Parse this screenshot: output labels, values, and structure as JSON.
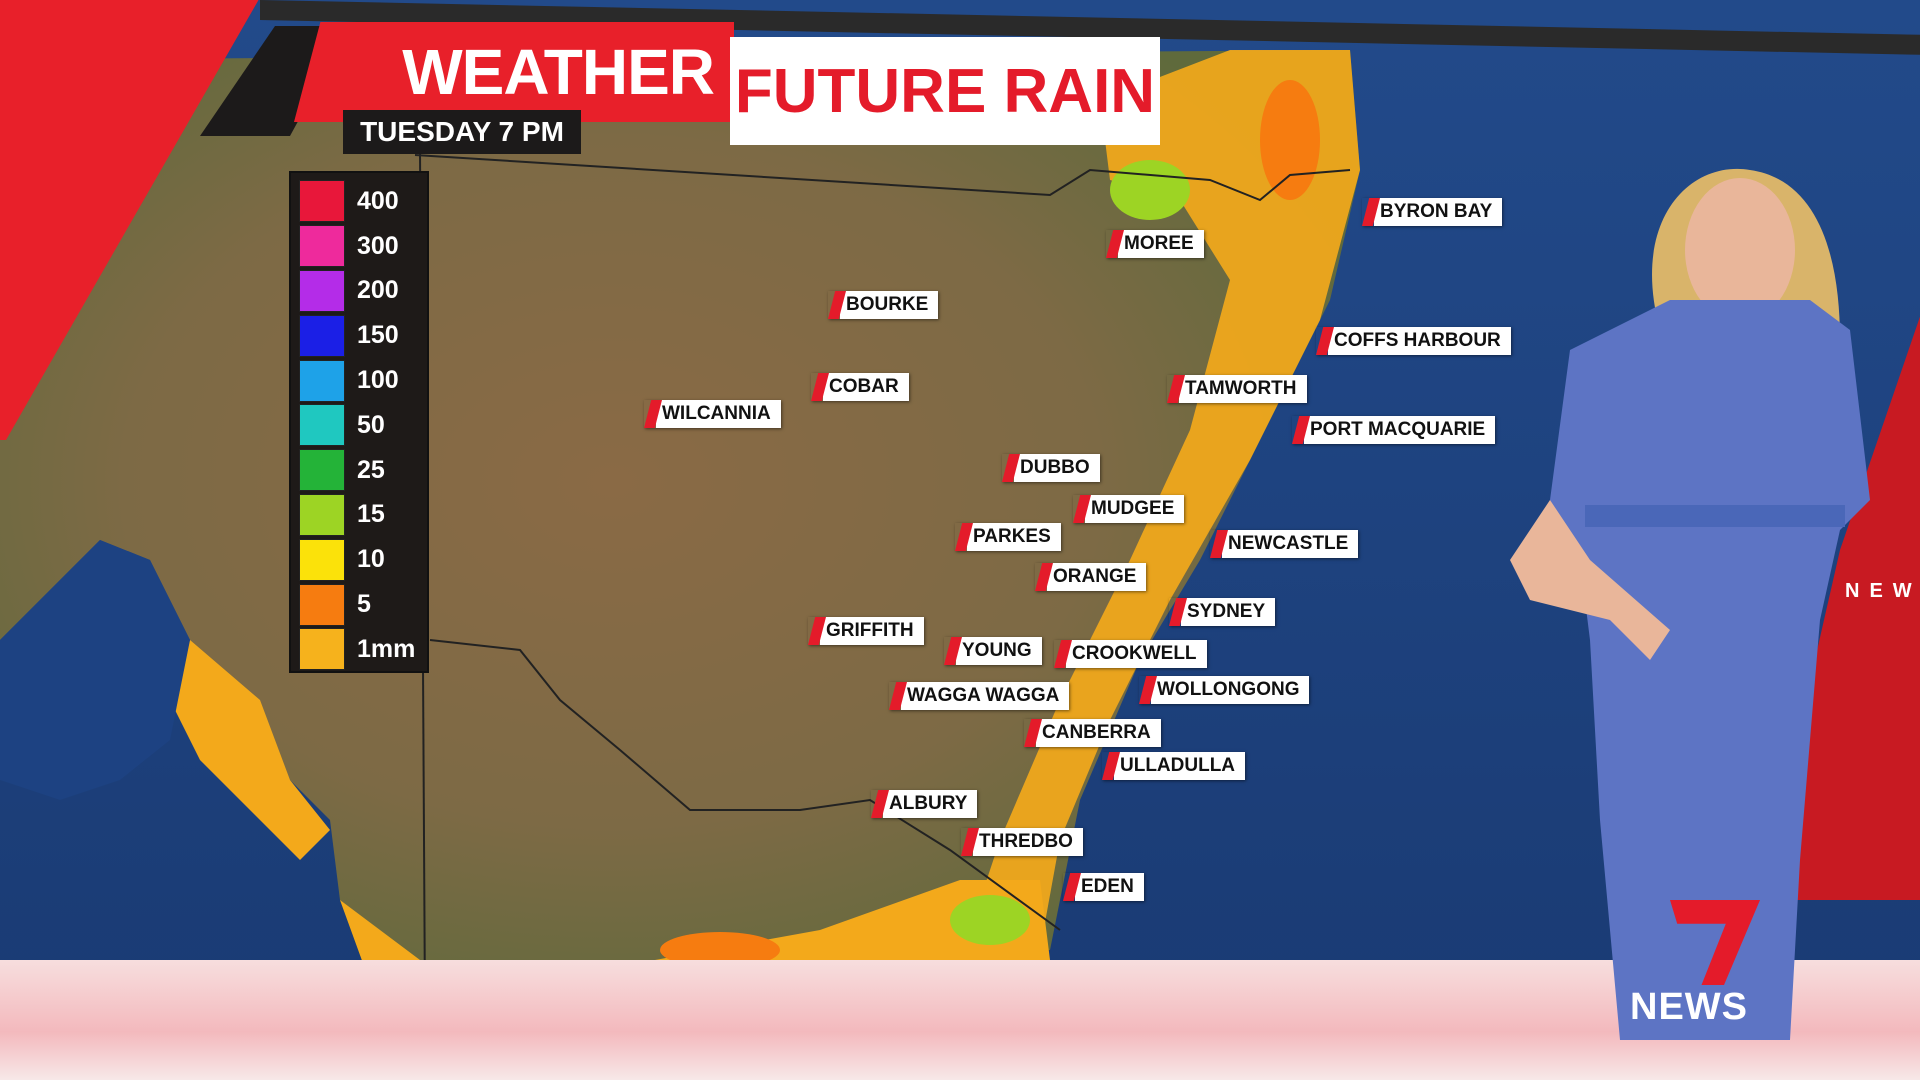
{
  "header": {
    "section": "WEATHER",
    "title": "FUTURE RAIN",
    "time": "TUESDAY 7 PM"
  },
  "legend": {
    "items": [
      {
        "label": "400",
        "color": "#e8173a"
      },
      {
        "label": "300",
        "color": "#ee2a9c"
      },
      {
        "label": "200",
        "color": "#b42ce8"
      },
      {
        "label": "150",
        "color": "#1b1fe6"
      },
      {
        "label": "100",
        "color": "#1ea2e8"
      },
      {
        "label": "50",
        "color": "#1fc8c0"
      },
      {
        "label": "25",
        "color": "#24b338"
      },
      {
        "label": "15",
        "color": "#9dd424"
      },
      {
        "label": "10",
        "color": "#fbe20a"
      },
      {
        "label": "5",
        "color": "#f67c10"
      },
      {
        "label": "1mm",
        "color": "#f6b21c"
      }
    ]
  },
  "cities": [
    "MOREE",
    "BYRON BAY",
    "BOURKE",
    "COFFS HARBOUR",
    "COBAR",
    "TAMWORTH",
    "WILCANNIA",
    "PORT MACQUARIE",
    "DUBBO",
    "MUDGEE",
    "PARKES",
    "NEWCASTLE",
    "ORANGE",
    "SYDNEY",
    "GRIFFITH",
    "YOUNG",
    "CROOKWELL",
    "WOLLONGONG",
    "WAGGA WAGGA",
    "CANBERRA",
    "ULLADULLA",
    "ALBURY",
    "THREDBO",
    "EDEN"
  ],
  "branding": {
    "logo": "7NEWS",
    "side_text": "NEW"
  },
  "colors": {
    "accent": "#e41b2a",
    "ocean": "#1f4580"
  }
}
